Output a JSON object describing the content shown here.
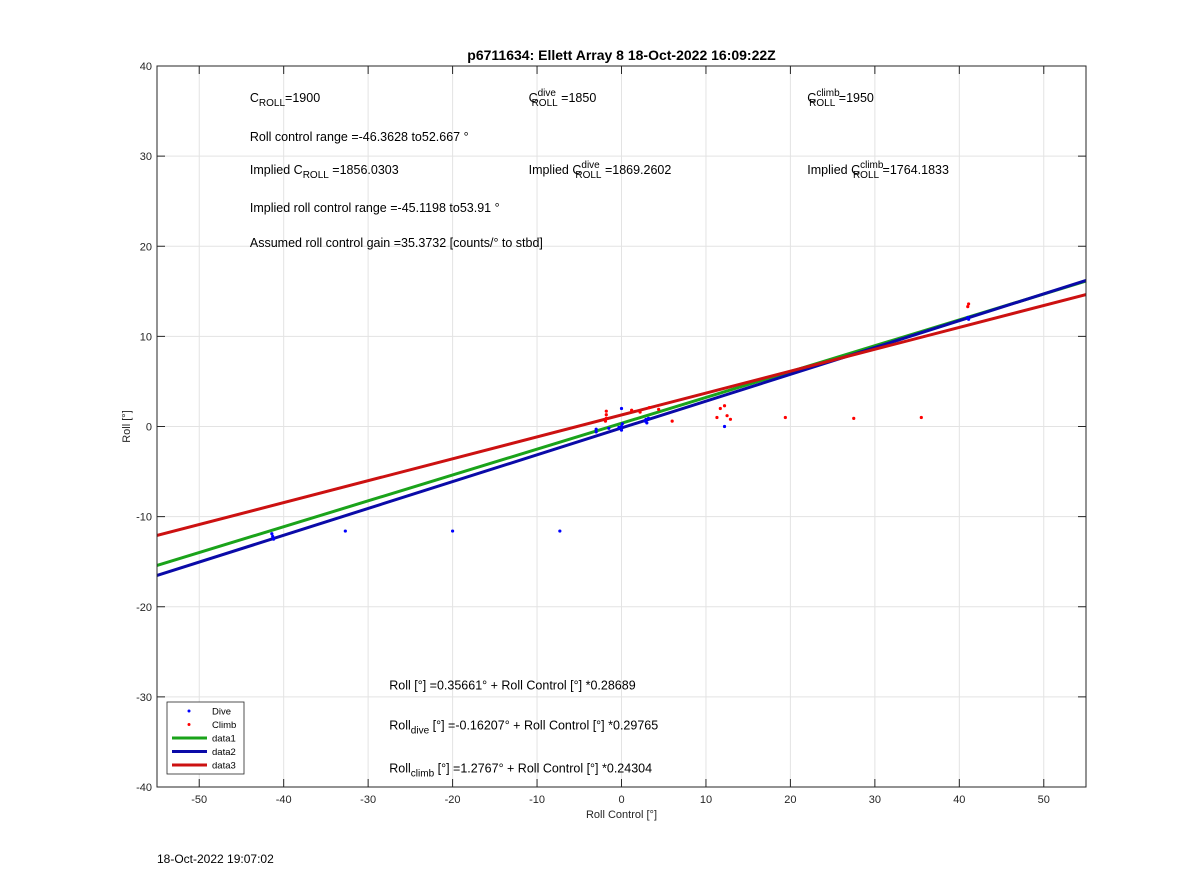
{
  "chart_data": {
    "type": "scatter",
    "title": "p6711634: Ellett Array 8 18-Oct-2022 16:09:22Z",
    "xlabel": "Roll Control [°]",
    "ylabel": "Roll [°]",
    "xlim": [
      -55,
      55
    ],
    "ylim": [
      -40,
      40
    ],
    "xticks": [
      -50,
      -40,
      -30,
      -20,
      -10,
      0,
      10,
      20,
      30,
      40,
      50
    ],
    "yticks": [
      -40,
      -30,
      -20,
      -10,
      0,
      10,
      20,
      30,
      40
    ],
    "grid": true,
    "legend_position": "bottom-left",
    "legend": [
      {
        "label": "Dive",
        "style": "dot",
        "color": "#0000ff"
      },
      {
        "label": "Climb",
        "style": "dot",
        "color": "#ff0000"
      },
      {
        "label": "data1",
        "style": "line",
        "color": "#1aa31a"
      },
      {
        "label": "data2",
        "style": "line",
        "color": "#0a0aa8"
      },
      {
        "label": "data3",
        "style": "line",
        "color": "#cc1111"
      }
    ],
    "series": [
      {
        "name": "Dive",
        "kind": "points",
        "color": "#0000ff",
        "points": [
          [
            -41.3,
            -12.2
          ],
          [
            -41.2,
            -12.5
          ],
          [
            -41.4,
            -11.9
          ],
          [
            -32.7,
            -11.6
          ],
          [
            -20.0,
            -11.6
          ],
          [
            -7.3,
            -11.6
          ],
          [
            -3.0,
            -0.6
          ],
          [
            -3.0,
            -0.3
          ],
          [
            -1.5,
            -0.2
          ],
          [
            -0.3,
            -0.1
          ],
          [
            0.0,
            0.0
          ],
          [
            0.0,
            -0.4
          ],
          [
            0.1,
            0.3
          ],
          [
            0.0,
            2.0
          ],
          [
            2.8,
            0.6
          ],
          [
            2.9,
            0.8
          ],
          [
            3.0,
            0.4
          ],
          [
            3.2,
            0.9
          ],
          [
            12.2,
            0.0
          ],
          [
            41.0,
            12.1
          ],
          [
            41.1,
            11.9
          ]
        ]
      },
      {
        "name": "Climb",
        "kind": "points",
        "color": "#ff0000",
        "points": [
          [
            -1.8,
            0.9
          ],
          [
            -1.8,
            1.3
          ],
          [
            -1.8,
            1.7
          ],
          [
            -1.9,
            0.6
          ],
          [
            1.2,
            1.8
          ],
          [
            2.2,
            1.6
          ],
          [
            3.3,
            2.1
          ],
          [
            4.4,
            1.9
          ],
          [
            6.0,
            0.6
          ],
          [
            11.3,
            1.0
          ],
          [
            11.7,
            2.0
          ],
          [
            12.2,
            2.3
          ],
          [
            12.5,
            1.2
          ],
          [
            12.9,
            0.8
          ],
          [
            19.4,
            1.0
          ],
          [
            27.5,
            0.9
          ],
          [
            35.5,
            1.0
          ],
          [
            41.0,
            13.3
          ],
          [
            41.1,
            13.6
          ]
        ]
      },
      {
        "name": "data1",
        "kind": "line",
        "color": "#1aa31a",
        "intercept": 0.35661,
        "slope": 0.28689
      },
      {
        "name": "data2",
        "kind": "line",
        "color": "#0a0aa8",
        "intercept": -0.16207,
        "slope": 0.29765
      },
      {
        "name": "data3",
        "kind": "line",
        "color": "#cc1111",
        "intercept": 1.2767,
        "slope": 0.24304
      }
    ],
    "annotations": [
      {
        "id": "c_roll",
        "x": -44,
        "y": 36,
        "parts": [
          {
            "t": "C"
          },
          {
            "t": "ROLL",
            "sub": true
          },
          {
            "t": "=1900"
          }
        ]
      },
      {
        "id": "c_roll_dive",
        "x": -11,
        "y": 36,
        "parts": [
          {
            "t": "C"
          },
          {
            "t": "dive",
            "sup": true
          },
          {
            "t": "ROLL",
            "sub": true
          },
          {
            "t": " =1850"
          }
        ]
      },
      {
        "id": "c_roll_climb",
        "x": 22,
        "y": 36,
        "parts": [
          {
            "t": "C"
          },
          {
            "t": "climb",
            "sup": true
          },
          {
            "t": "ROLL",
            "sub": true
          },
          {
            "t": " =1950"
          }
        ]
      },
      {
        "id": "roll_range",
        "x": -44,
        "y": 31.7,
        "parts": [
          {
            "t": "Roll control range =-46.3628 to52.667 °"
          }
        ]
      },
      {
        "id": "implied_c_roll",
        "x": -44,
        "y": 28,
        "parts": [
          {
            "t": "Implied C"
          },
          {
            "t": "ROLL",
            "sub": true
          },
          {
            "t": " =1856.0303"
          }
        ]
      },
      {
        "id": "implied_c_dive",
        "x": -11,
        "y": 28,
        "parts": [
          {
            "t": "Implied C"
          },
          {
            "t": "dive",
            "sup": true
          },
          {
            "t": "ROLL",
            "sub": true
          },
          {
            "t": " =1869.2602"
          }
        ]
      },
      {
        "id": "implied_c_climb",
        "x": 22,
        "y": 28,
        "parts": [
          {
            "t": "Implied C"
          },
          {
            "t": "climb",
            "sup": true
          },
          {
            "t": "ROLL",
            "sub": true
          },
          {
            "t": " =1764.1833"
          }
        ]
      },
      {
        "id": "implied_range",
        "x": -44,
        "y": 23.8,
        "parts": [
          {
            "t": "Implied roll control range =-45.1198 to53.91 °"
          }
        ]
      },
      {
        "id": "gain",
        "x": -44,
        "y": 19.9,
        "parts": [
          {
            "t": "Assumed roll control gain =35.3732 [counts/° to stbd]"
          }
        ]
      },
      {
        "id": "fit_all",
        "x": -27.5,
        "y": -29.2,
        "parts": [
          {
            "t": "Roll [°] =0.35661° + Roll Control [°] *0.28689"
          }
        ]
      },
      {
        "id": "fit_dive",
        "x": -27.5,
        "y": -33.6,
        "parts": [
          {
            "t": "Roll"
          },
          {
            "t": "dive",
            "sub": true
          },
          {
            "t": " [°] =-0.16207° + Roll Control [°] *0.29765"
          }
        ]
      },
      {
        "id": "fit_climb",
        "x": -27.5,
        "y": -38.4,
        "parts": [
          {
            "t": "Roll"
          },
          {
            "t": "climb",
            "sub": true
          },
          {
            "t": " [°] =1.2767° + Roll Control [°] *0.24304"
          }
        ]
      }
    ]
  },
  "footer": {
    "timestamp": "18-Oct-2022 19:07:02"
  }
}
